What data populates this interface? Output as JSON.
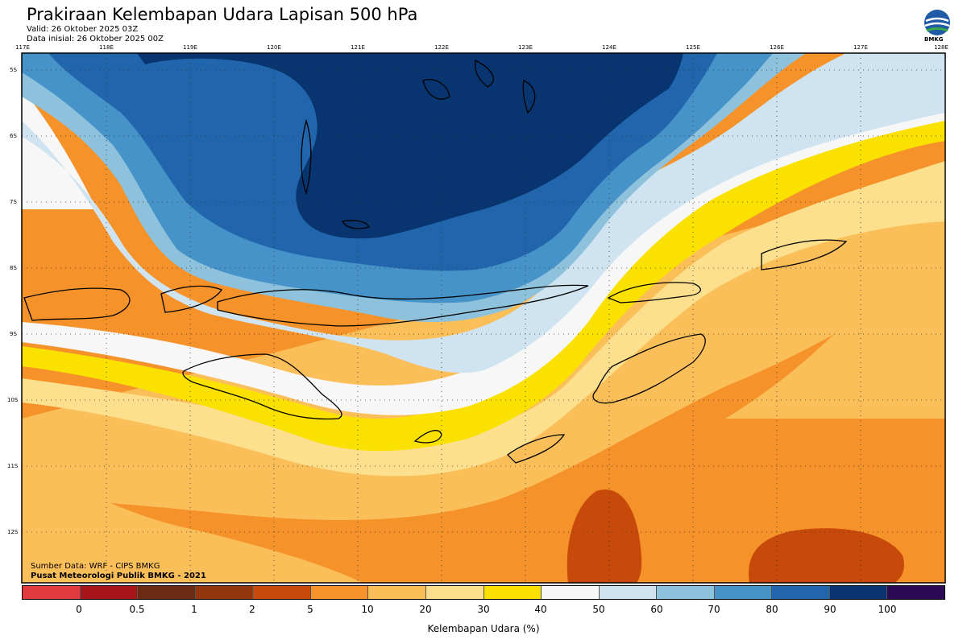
{
  "header": {
    "title": "Prakiraan Kelembapan Udara Lapisan 500 hPa",
    "valid": "Valid: 26 Oktober 2025 03Z",
    "init": "Data inisial: 26 Oktober 2025 00Z",
    "logo_text": "BMKG"
  },
  "map": {
    "lon_labels": [
      "117E",
      "118E",
      "119E",
      "120E",
      "121E",
      "122E",
      "123E",
      "124E",
      "125E",
      "126E",
      "127E",
      "128E"
    ],
    "lat_labels": [
      "5S",
      "6S",
      "7S",
      "8S",
      "9S",
      "10S",
      "11S",
      "12S"
    ],
    "credit_source": "Sumber Data: WRF - CIPS BMKG",
    "credit_org": "Pusat Meteorologi Publik BMKG - 2021"
  },
  "legend": {
    "title": "Kelembapan Udara (%)",
    "labels": [
      "0",
      "0.5",
      "1",
      "2",
      "5",
      "10",
      "20",
      "30",
      "40",
      "50",
      "60",
      "70",
      "80",
      "90",
      "100"
    ],
    "colors": [
      "#e03a3c",
      "#a8141a",
      "#6b2a12",
      "#923710",
      "#c84a0a",
      "#f5932a",
      "#fbbf5a",
      "#fde08e",
      "#fae100",
      "#f7f7f7",
      "#cfe4f0",
      "#8ec1dc",
      "#4593c9",
      "#2166ac",
      "#083470",
      "#2d0a56"
    ]
  }
}
